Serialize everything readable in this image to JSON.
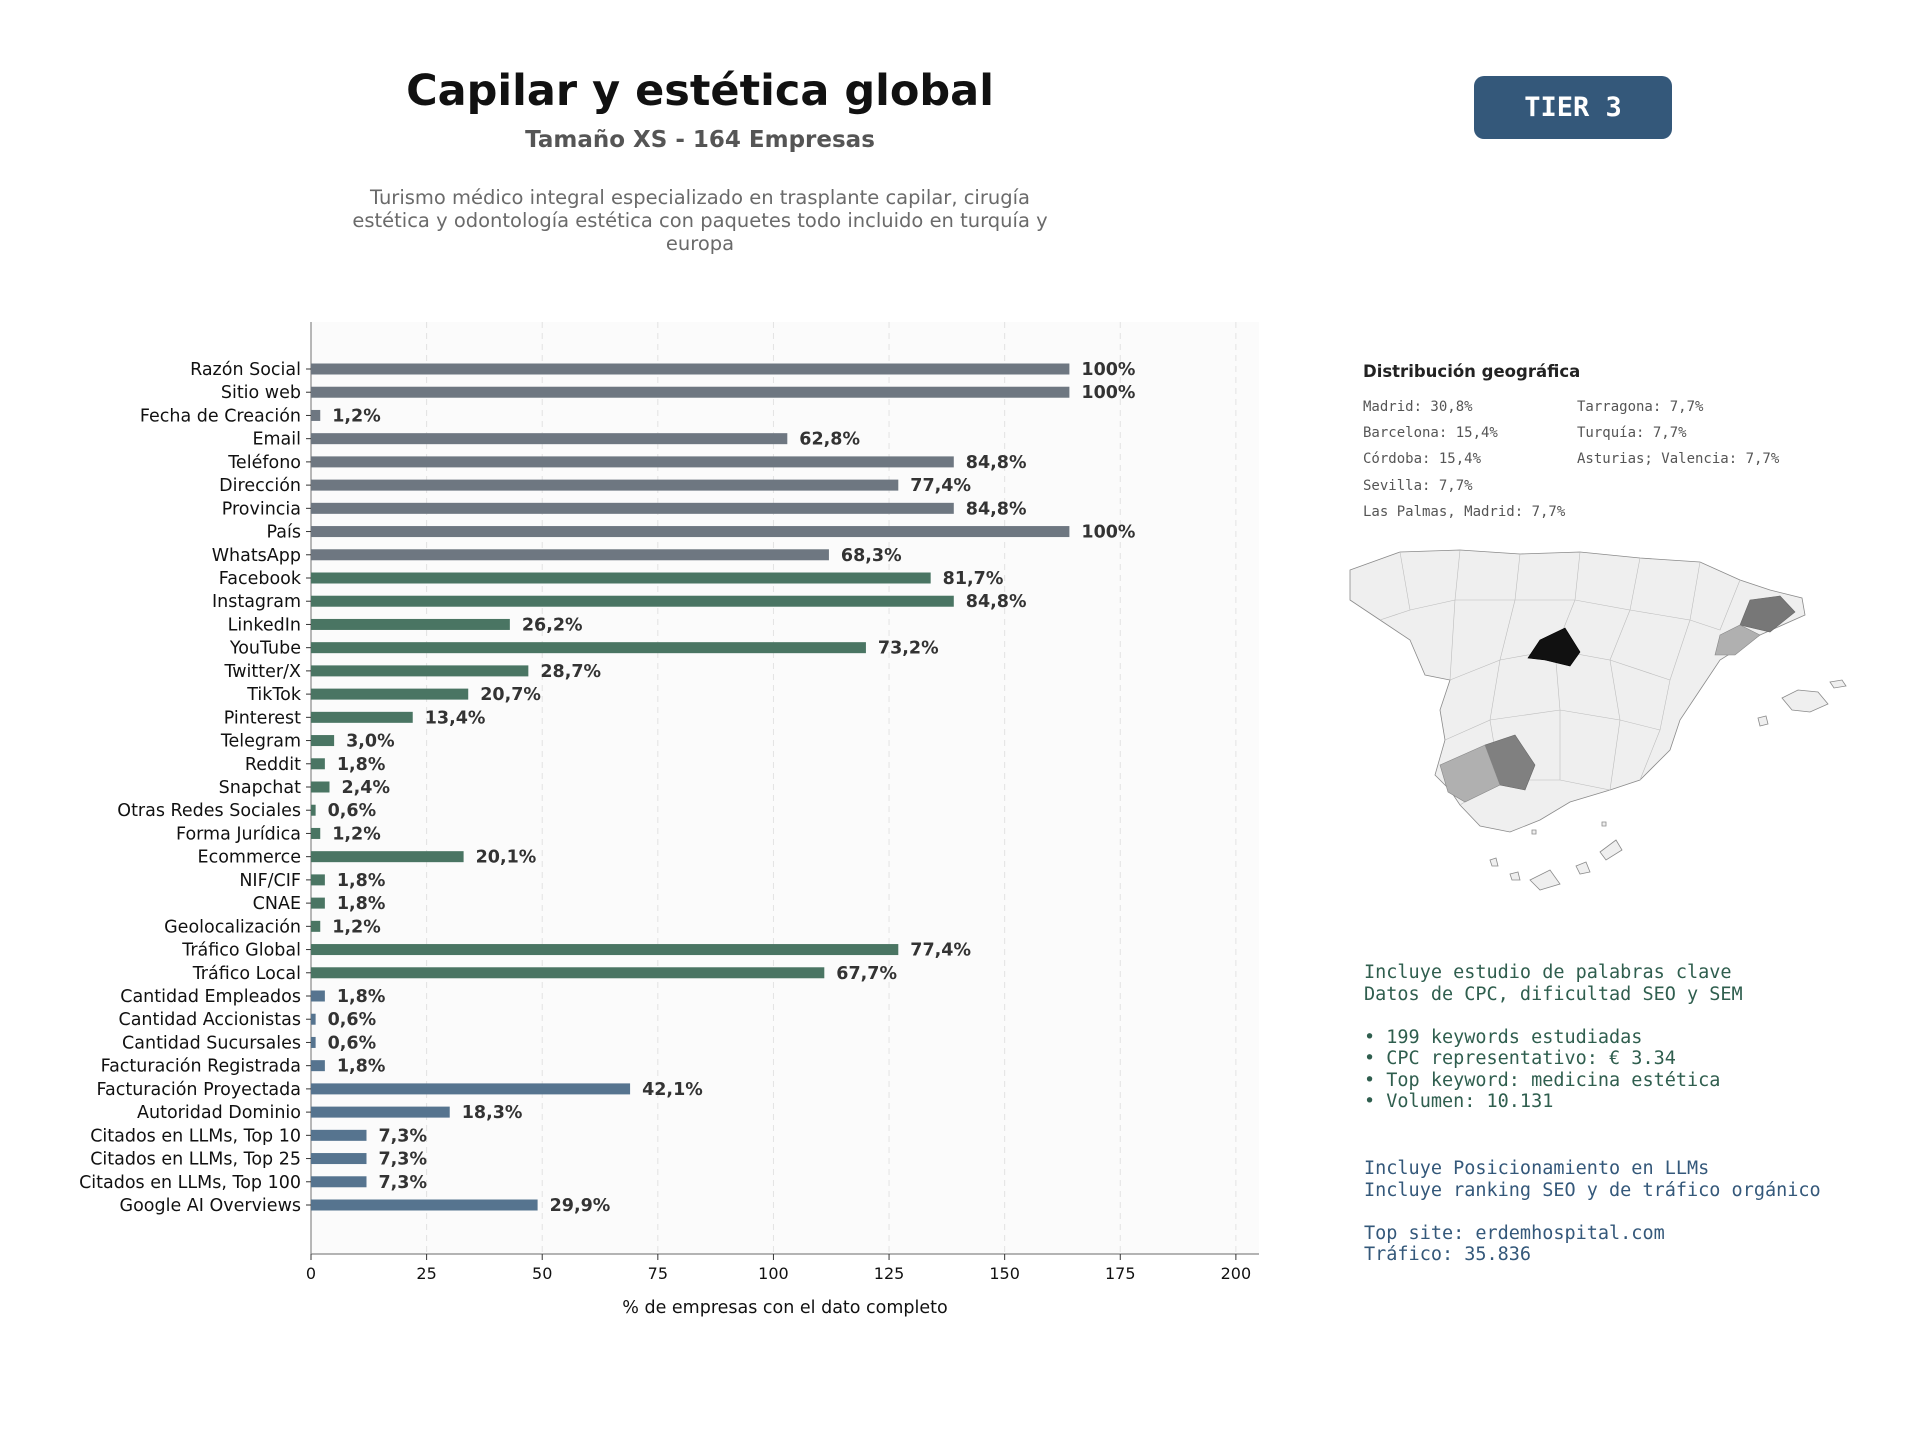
{
  "header": {
    "title": "Capilar y estética global",
    "subtitle": "Tamaño XS - 164 Empresas",
    "description": "Turismo médico integral especializado en trasplante capilar, cirugía estética y odontología estética con paquetes todo incluido en turquía y europa",
    "tier": "TIER 3"
  },
  "chart_data": {
    "type": "bar",
    "orientation": "horizontal",
    "categories": [
      "Razón Social",
      "Sitio web",
      "Fecha de Creación",
      "Email",
      "Teléfono",
      "Dirección",
      "Provincia",
      "País",
      "WhatsApp",
      "Facebook",
      "Instagram",
      "LinkedIn",
      "YouTube",
      "Twitter/X",
      "TikTok",
      "Pinterest",
      "Telegram",
      "Reddit",
      "Snapchat",
      "Otras Redes Sociales",
      "Forma Jurídica",
      "Ecommerce",
      "NIF/CIF",
      "CNAE",
      "Geolocalización",
      "Tráfico Global",
      "Tráfico Local",
      "Cantidad Empleados",
      "Cantidad Accionistas",
      "Cantidad Sucursales",
      "Facturación Registrada",
      "Facturación Proyectada",
      "Autoridad Dominio",
      "Citados en LLMs, Top 10",
      "Citados en LLMs, Top 25",
      "Citados en LLMs, Top 100",
      "Google AI Overviews"
    ],
    "values": [
      164,
      164,
      2,
      103,
      139,
      127,
      139,
      164,
      112,
      134,
      139,
      43,
      120,
      47,
      34,
      22,
      5,
      3,
      4,
      1,
      2,
      33,
      3,
      3,
      2,
      127,
      111,
      3,
      1,
      1,
      3,
      69,
      30,
      12,
      12,
      12,
      49
    ],
    "labels": [
      "100%",
      "100%",
      "1,2%",
      "62,8%",
      "84,8%",
      "77,4%",
      "84,8%",
      "100%",
      "68,3%",
      "81,7%",
      "84,8%",
      "26,2%",
      "73,2%",
      "28,7%",
      "20,7%",
      "13,4%",
      "3,0%",
      "1,8%",
      "2,4%",
      "0,6%",
      "1,2%",
      "20,1%",
      "1,8%",
      "1,8%",
      "1,2%",
      "77,4%",
      "67,7%",
      "1,8%",
      "0,6%",
      "0,6%",
      "1,8%",
      "42,1%",
      "18,3%",
      "7,3%",
      "7,3%",
      "7,3%",
      "29,9%"
    ],
    "groups": [
      "basic",
      "basic",
      "basic",
      "basic",
      "basic",
      "basic",
      "basic",
      "basic",
      "basic",
      "social",
      "social",
      "social",
      "social",
      "social",
      "social",
      "social",
      "social",
      "social",
      "social",
      "social",
      "social",
      "social",
      "social",
      "social",
      "social",
      "social",
      "social",
      "business",
      "business",
      "business",
      "business",
      "business",
      "business",
      "business",
      "business",
      "business",
      "business"
    ],
    "colors": {
      "basic": "#6e7781",
      "social": "#4a7563",
      "business": "#56748f"
    },
    "xlabel": "% de empresas con el dato completo",
    "xlim": [
      0,
      205
    ],
    "xticks": [
      0,
      25,
      50,
      75,
      100,
      125,
      150,
      175,
      200
    ],
    "grid": "vertical dashed"
  },
  "geo": {
    "title": "Distribución geográfica",
    "items": [
      "Madrid: 30,8%",
      "Barcelona: 15,4%",
      "Córdoba: 15,4%",
      "Sevilla: 7,7%",
      "Las Palmas, Madrid: 7,7%",
      "Tarragona: 7,7%",
      "Turquía: 7,7%",
      "Asturias; Valencia: 7,7%"
    ]
  },
  "keywords_info": {
    "line1": "Incluye estudio de palabras clave",
    "line2": "Datos de CPC, dificultad SEO y SEM",
    "bullet1": "• 199 keywords estudiadas",
    "bullet2": "• CPC representativo: € 3.34",
    "bullet3": "• Top keyword: medicina estética",
    "bullet4": "• Volumen: 10.131"
  },
  "llm_info": {
    "line1": "Incluye Posicionamiento en LLMs",
    "line2": "Incluye ranking SEO y de tráfico orgánico",
    "line3": "Top site: erdemhospital.com",
    "line4": "Tráfico: 35.836"
  }
}
